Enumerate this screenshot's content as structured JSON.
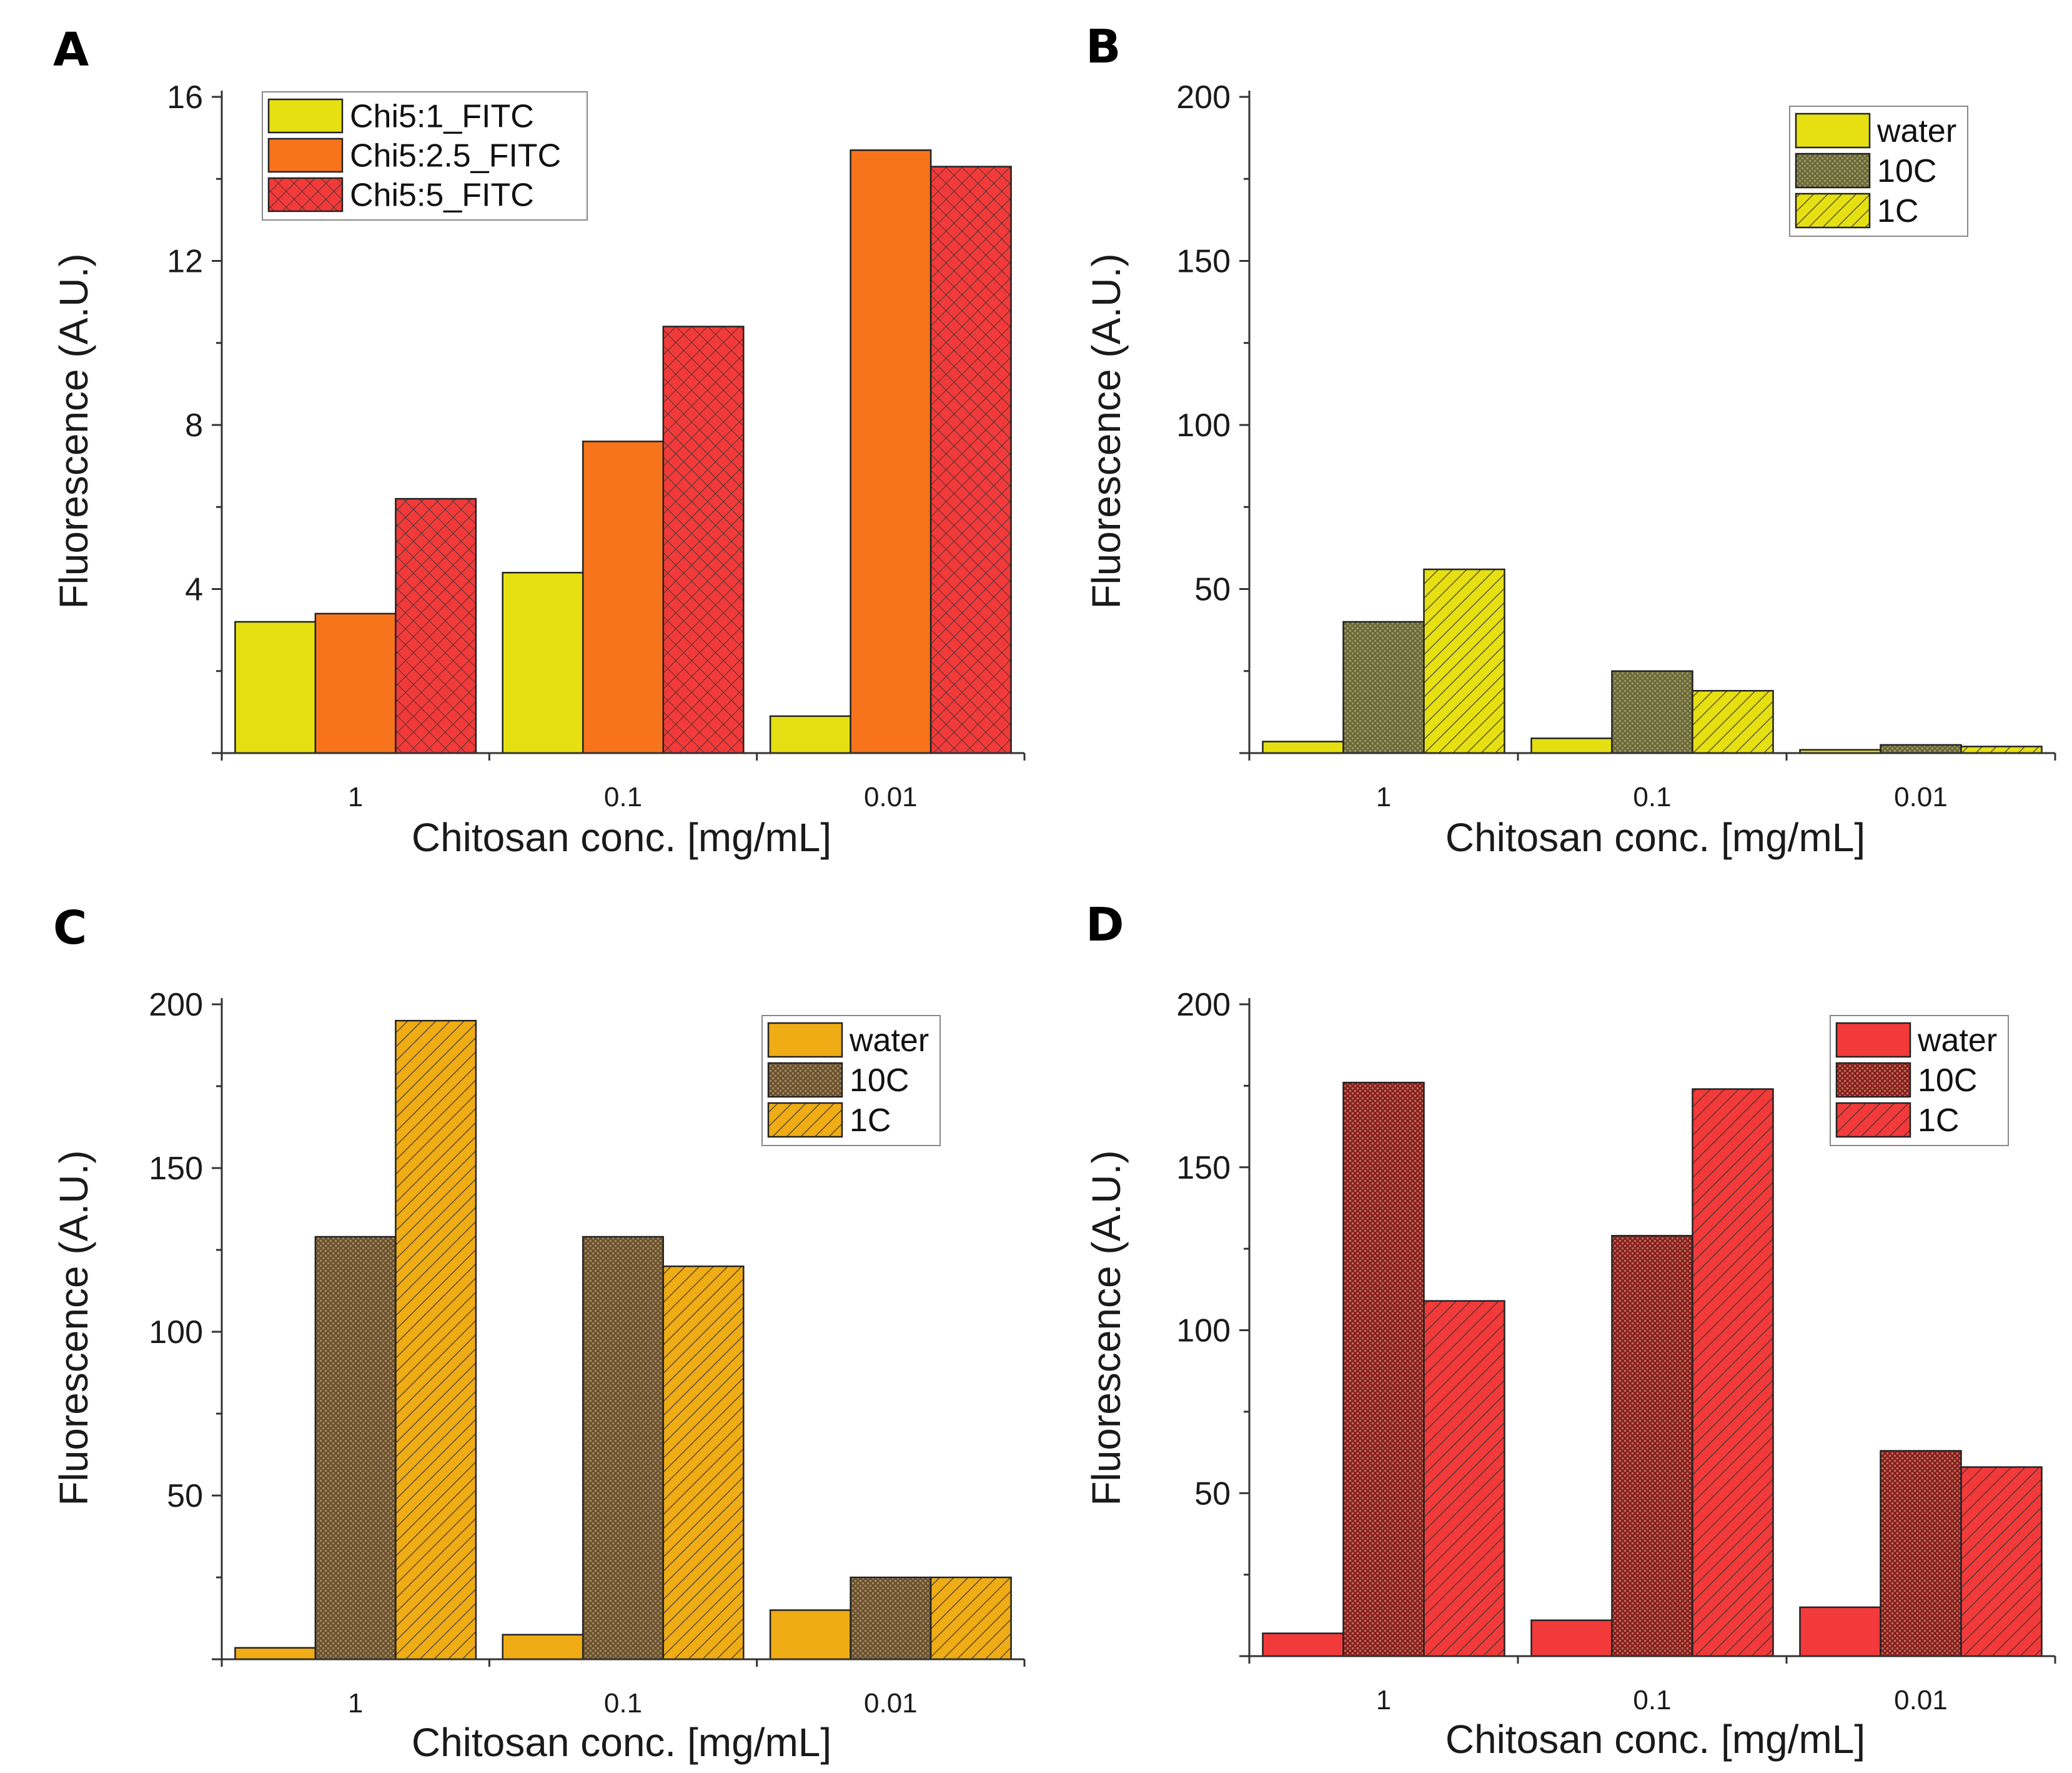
{
  "colors": {
    "yellow": "#e6e012",
    "orange": "#f7741c",
    "red": "#f23a3a",
    "olive": "#6b6b3a",
    "olive_hatch_bg": "#e6e012",
    "amber": "#f0ac14",
    "brown": "#6e5230",
    "darkred": "#8e1e1e",
    "hatch_line": "#333333"
  },
  "chart_data": [
    {
      "panel": "A",
      "type": "bar",
      "title": "",
      "xlabel": "Chitosan conc. [mg/mL]",
      "ylabel": "Fluorescence (A.U.)",
      "categories": [
        "1",
        "0.1",
        "0.01"
      ],
      "ylim": [
        0,
        16
      ],
      "yticks": [
        4,
        8,
        12,
        16
      ],
      "legend_position": "top-left",
      "series": [
        {
          "name": "Chi5:1_FITC",
          "values": [
            3.2,
            4.4,
            0.9
          ],
          "fill": "yellow",
          "pattern": "solid"
        },
        {
          "name": "Chi5:2.5_FITC",
          "values": [
            3.4,
            7.6,
            14.7
          ],
          "fill": "orange",
          "pattern": "solid"
        },
        {
          "name": "Chi5:5_FITC",
          "values": [
            6.2,
            10.4,
            14.3
          ],
          "fill": "red",
          "pattern": "crosshatch"
        }
      ]
    },
    {
      "panel": "B",
      "type": "bar",
      "title": "",
      "xlabel": "Chitosan conc. [mg/mL]",
      "ylabel": "Fluorescence (A.U.)",
      "categories": [
        "1",
        "0.1",
        "0.01"
      ],
      "ylim": [
        0,
        200
      ],
      "yticks": [
        50,
        100,
        150,
        200
      ],
      "legend_position": "top-right",
      "series": [
        {
          "name": "water",
          "values": [
            3.5,
            4.5,
            1.0
          ],
          "fill": "yellow",
          "pattern": "solid"
        },
        {
          "name": "10C",
          "values": [
            40,
            25,
            2.5
          ],
          "fill": "olive",
          "pattern": "dots"
        },
        {
          "name": "1C",
          "values": [
            56,
            19,
            2.0
          ],
          "fill": "yellow",
          "pattern": "diagonal"
        }
      ]
    },
    {
      "panel": "C",
      "type": "bar",
      "title": "",
      "xlabel": "Chitosan conc. [mg/mL]",
      "ylabel": "Fluorescence (A.U.)",
      "categories": [
        "1",
        "0.1",
        "0.01"
      ],
      "ylim": [
        0,
        200
      ],
      "yticks": [
        50,
        100,
        150,
        200
      ],
      "legend_position": "top-right",
      "series": [
        {
          "name": "water",
          "values": [
            3.5,
            7.5,
            15
          ],
          "fill": "amber",
          "pattern": "solid"
        },
        {
          "name": "10C",
          "values": [
            129,
            129,
            25
          ],
          "fill": "brown",
          "pattern": "dots"
        },
        {
          "name": "1C",
          "values": [
            195,
            120,
            25
          ],
          "fill": "amber",
          "pattern": "diagonal"
        }
      ]
    },
    {
      "panel": "D",
      "type": "bar",
      "title": "",
      "xlabel": "Chitosan conc. [mg/mL]",
      "ylabel": "Fluorescence (A.U.)",
      "categories": [
        "1",
        "0.1",
        "0.01"
      ],
      "ylim": [
        0,
        200
      ],
      "yticks": [
        50,
        100,
        150,
        200
      ],
      "legend_position": "top-right",
      "series": [
        {
          "name": "water",
          "values": [
            7,
            11,
            15
          ],
          "fill": "red",
          "pattern": "solid"
        },
        {
          "name": "10C",
          "values": [
            176,
            129,
            63
          ],
          "fill": "darkred",
          "pattern": "dots"
        },
        {
          "name": "1C",
          "values": [
            109,
            174,
            58
          ],
          "fill": "red",
          "pattern": "diagonal"
        }
      ]
    }
  ]
}
